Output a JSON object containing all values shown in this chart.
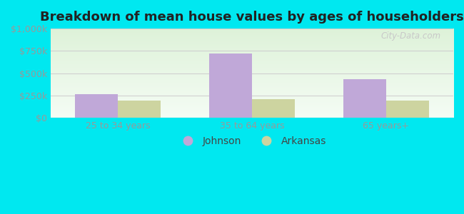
{
  "title": "Breakdown of mean house values by ages of householders",
  "categories": [
    "25 to 34 years",
    "35 to 64 years",
    "65 years+"
  ],
  "johnson_values": [
    262000,
    717000,
    430000
  ],
  "arkansas_values": [
    195000,
    210000,
    195000
  ],
  "johnson_color": "#c0a8d8",
  "arkansas_color": "#cdd4a0",
  "ylim": [
    0,
    1000000
  ],
  "yticks": [
    0,
    250000,
    500000,
    750000,
    1000000
  ],
  "ytick_labels": [
    "$0",
    "$250k",
    "$500k",
    "$750k",
    "$1,000k"
  ],
  "background_outer": "#00e8f0",
  "background_inner_top": "#ddf0d8",
  "background_inner_bottom": "#f4fbf4",
  "bar_width": 0.32,
  "legend_johnson": "Johnson",
  "legend_arkansas": "Arkansas",
  "watermark": "City-Data.com",
  "title_fontsize": 13,
  "tick_fontsize": 9,
  "legend_fontsize": 10,
  "grid_color": "#d0d0d0"
}
